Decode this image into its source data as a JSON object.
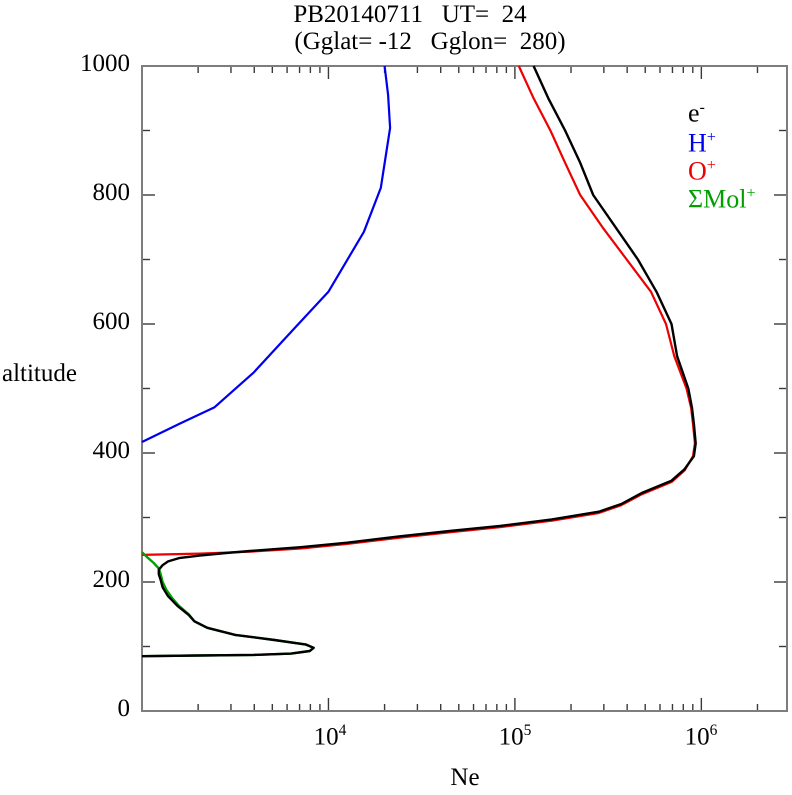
{
  "title": {
    "line1": "PB20140711   UT=  24",
    "line2": "(Gglat= -12   Gglon=  280)"
  },
  "axes": {
    "y_label": "altitude",
    "x_label": "Ne",
    "y_tick_labels": [
      "0",
      "200",
      "400",
      "600",
      "800",
      "1000"
    ],
    "x_tick_labels": [
      {
        "base": "10",
        "exp": "4"
      },
      {
        "base": "10",
        "exp": "5"
      },
      {
        "base": "10",
        "exp": "6"
      }
    ]
  },
  "legend": {
    "items": [
      {
        "main": "e",
        "sup": "-",
        "color": "#000000"
      },
      {
        "main": "H",
        "sup": "+",
        "color": "#0000ee"
      },
      {
        "main": "O",
        "sup": "+",
        "color": "#ee0000"
      },
      {
        "main": "ΣMol",
        "sup": "+",
        "color": "#00a000"
      }
    ]
  },
  "chart_data": {
    "type": "line",
    "title": "PB20140711 UT= 24",
    "subtitle": "(Gglat= -12 Gglon= 280)",
    "xlabel": "Ne",
    "ylabel": "altitude",
    "x_scale": "log",
    "xlim": [
      1000,
      2880000
    ],
    "ylim": [
      0,
      1000
    ],
    "x_major_ticks": [
      10000,
      100000,
      1000000
    ],
    "x_minor_ticks": "2-9 per decade",
    "y_major_tick_step": 200,
    "y_minor_tick_step": 100,
    "grid": false,
    "legend_position": "top-right-inside",
    "frame_color": "#7d7d7d",
    "series": [
      {
        "name": "H+",
        "color": "#0000ee",
        "width": 2.2,
        "points": [
          [
            1000,
            417
          ],
          [
            1580,
            445
          ],
          [
            2450,
            471
          ],
          [
            3980,
            525
          ],
          [
            6460,
            591
          ],
          [
            10000,
            650
          ],
          [
            15500,
            743
          ],
          [
            19100,
            811
          ],
          [
            21400,
            904
          ],
          [
            20900,
            955
          ],
          [
            20000,
            1000
          ]
        ]
      },
      {
        "name": "O+",
        "color": "#ee0000",
        "width": 2.2,
        "points": [
          [
            1000,
            242
          ],
          [
            2040,
            244
          ],
          [
            3800,
            247
          ],
          [
            7080,
            252
          ],
          [
            12600,
            259
          ],
          [
            24500,
            269
          ],
          [
            44700,
            277
          ],
          [
            83200,
            285
          ],
          [
            158000,
            295
          ],
          [
            282000,
            307
          ],
          [
            372000,
            319
          ],
          [
            479000,
            336
          ],
          [
            692000,
            355
          ],
          [
            813000,
            373
          ],
          [
            902000,
            395
          ],
          [
            923000,
            415
          ],
          [
            902000,
            445
          ],
          [
            881000,
            470
          ],
          [
            832000,
            500
          ],
          [
            716000,
            550
          ],
          [
            646000,
            600
          ],
          [
            537000,
            650
          ],
          [
            398000,
            700
          ],
          [
            295000,
            750
          ],
          [
            224000,
            800
          ],
          [
            186000,
            850
          ],
          [
            155000,
            900
          ],
          [
            126000,
            950
          ],
          [
            105000,
            1000
          ]
        ]
      },
      {
        "name": "ΣMol+",
        "color": "#00a000",
        "width": 2.4,
        "points": [
          [
            1000,
            246
          ],
          [
            1070,
            238
          ],
          [
            1150,
            230
          ],
          [
            1230,
            221
          ],
          [
            1260,
            212
          ],
          [
            1290,
            200
          ],
          [
            1350,
            188
          ],
          [
            1450,
            175
          ],
          [
            1580,
            163
          ],
          [
            1780,
            150
          ],
          [
            1910,
            139
          ],
          [
            2240,
            129
          ],
          [
            3160,
            118
          ],
          [
            5130,
            110
          ],
          [
            7590,
            103
          ],
          [
            8320,
            98
          ],
          [
            7940,
            93
          ],
          [
            6310,
            89
          ],
          [
            3980,
            87
          ],
          [
            2000,
            86
          ],
          [
            1000,
            85
          ]
        ]
      },
      {
        "name": "e-",
        "color": "#000000",
        "width": 2.4,
        "points": [
          [
            1000,
            85
          ],
          [
            2000,
            86
          ],
          [
            3980,
            87
          ],
          [
            6310,
            89
          ],
          [
            7940,
            93
          ],
          [
            8320,
            98
          ],
          [
            7590,
            103
          ],
          [
            5130,
            110
          ],
          [
            3160,
            118
          ],
          [
            2240,
            129
          ],
          [
            1910,
            139
          ],
          [
            1780,
            149
          ],
          [
            1550,
            163
          ],
          [
            1380,
            178
          ],
          [
            1290,
            192
          ],
          [
            1260,
            203
          ],
          [
            1230,
            212
          ],
          [
            1230,
            219
          ],
          [
            1290,
            226
          ],
          [
            1380,
            232
          ],
          [
            1580,
            237
          ],
          [
            2040,
            241
          ],
          [
            2820,
            245
          ],
          [
            3800,
            248
          ],
          [
            7080,
            254
          ],
          [
            12600,
            261
          ],
          [
            24500,
            271
          ],
          [
            44700,
            279
          ],
          [
            83200,
            287
          ],
          [
            158000,
            297
          ],
          [
            282000,
            309
          ],
          [
            372000,
            321
          ],
          [
            479000,
            338
          ],
          [
            692000,
            357
          ],
          [
            813000,
            375
          ],
          [
            912000,
            395
          ],
          [
            933000,
            415
          ],
          [
            912000,
            445
          ],
          [
            891000,
            470
          ],
          [
            851000,
            500
          ],
          [
            741000,
            550
          ],
          [
            692000,
            600
          ],
          [
            575000,
            650
          ],
          [
            457000,
            700
          ],
          [
            347000,
            750
          ],
          [
            263000,
            800
          ],
          [
            224000,
            850
          ],
          [
            186000,
            900
          ],
          [
            151000,
            950
          ],
          [
            126000,
            1000
          ]
        ]
      }
    ]
  }
}
